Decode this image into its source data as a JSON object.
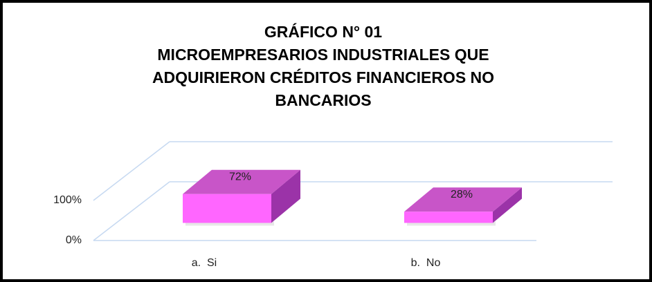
{
  "chart_data": {
    "type": "bar3d",
    "title": "GRÁFICO N° 01\nMICROEMPRESARIOS INDUSTRIALES QUE\nADQUIRIERON CRÉDITOS FINANCIEROS NO\nBANCARIOS",
    "categories": [
      "a.  Si",
      "b.  No"
    ],
    "values": [
      72,
      28
    ],
    "value_labels": [
      "72%",
      "28%"
    ],
    "color": "#ff66ff",
    "ylim": [
      0,
      100
    ],
    "yticks": [
      {
        "value": 0,
        "label": "0%"
      },
      {
        "value": 100,
        "label": "100%"
      }
    ],
    "grid": true
  }
}
